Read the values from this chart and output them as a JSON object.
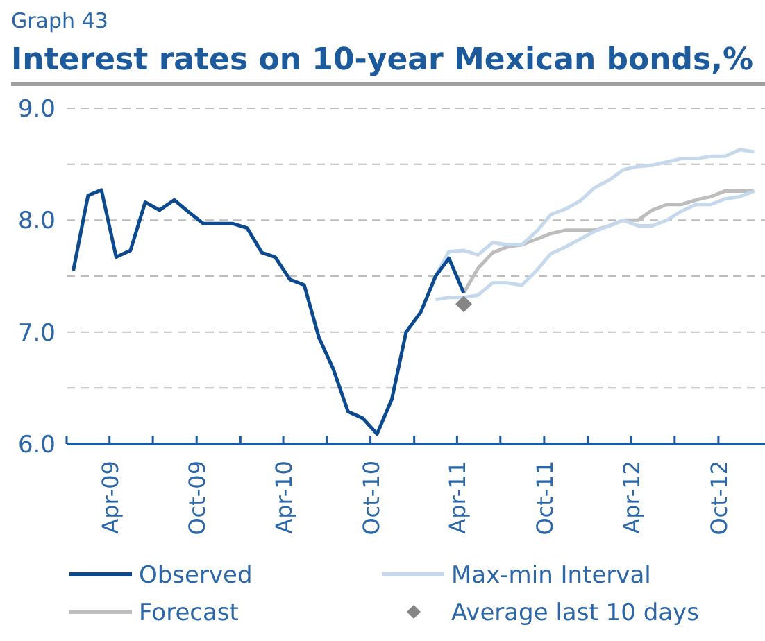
{
  "chart_data": {
    "type": "line",
    "subtitle": "Graph 43",
    "title": "Interest rates on 10-year Mexican bonds,%",
    "xlim": [
      "2009-01-01",
      "2013-01-01"
    ],
    "xticks": [
      {
        "value": "2009-01-01",
        "label": null
      },
      {
        "value": "2009-04-01",
        "label": "Apr-09"
      },
      {
        "value": "2009-07-01",
        "label": null
      },
      {
        "value": "2009-10-01",
        "label": "Oct-09"
      },
      {
        "value": "2010-01-01",
        "label": null
      },
      {
        "value": "2010-04-01",
        "label": "Apr-10"
      },
      {
        "value": "2010-07-01",
        "label": null
      },
      {
        "value": "2010-10-01",
        "label": "Oct-10"
      },
      {
        "value": "2011-01-01",
        "label": null
      },
      {
        "value": "2011-04-01",
        "label": "Apr-11"
      },
      {
        "value": "2011-07-01",
        "label": null
      },
      {
        "value": "2011-10-01",
        "label": "Oct-11"
      },
      {
        "value": "2012-01-01",
        "label": null
      },
      {
        "value": "2012-04-01",
        "label": "Apr-12"
      },
      {
        "value": "2012-07-01",
        "label": null
      },
      {
        "value": "2012-10-01",
        "label": "Oct-12"
      }
    ],
    "ylim": [
      6,
      9
    ],
    "yticks": [
      {
        "value": 6,
        "label": "6.0"
      },
      {
        "value": 6.5,
        "label": null
      },
      {
        "value": 7,
        "label": "7.0"
      },
      {
        "value": 7.5,
        "label": null
      },
      {
        "value": 8,
        "label": "8.0"
      },
      {
        "value": 8.5,
        "label": null
      },
      {
        "value": 9,
        "label": "9.0"
      }
    ],
    "grid": "y",
    "legend": "bottom",
    "line_style": "solid",
    "series": [
      {
        "name": "Observed",
        "color": "#0b4a8f",
        "x": [
          "2009-01-15",
          "2009-02-15",
          "2009-03-15",
          "2009-04-15",
          "2009-05-15",
          "2009-06-15",
          "2009-07-15",
          "2009-08-15",
          "2009-09-15",
          "2009-10-15",
          "2009-11-15",
          "2009-12-15",
          "2010-01-15",
          "2010-02-15",
          "2010-03-15",
          "2010-04-15",
          "2010-05-15",
          "2010-06-15",
          "2010-07-15",
          "2010-08-15",
          "2010-09-15",
          "2010-10-15",
          "2010-11-15",
          "2010-12-15",
          "2011-01-15",
          "2011-02-15",
          "2011-03-15",
          "2011-04-15"
        ],
        "values": [
          7.55,
          8.22,
          8.27,
          7.67,
          7.73,
          8.16,
          8.09,
          8.18,
          8.07,
          7.97,
          7.97,
          7.97,
          7.93,
          7.71,
          7.67,
          7.47,
          7.42,
          6.95,
          6.67,
          6.29,
          6.23,
          6.09,
          6.4,
          7.0,
          7.18,
          7.5,
          7.66,
          7.35
        ]
      },
      {
        "name": "Max-min Interval",
        "color": "#c6d9ec",
        "x": [
          "2011-02-15",
          "2011-03-15",
          "2011-04-15",
          "2011-05-15",
          "2011-06-15",
          "2011-07-15",
          "2011-08-15",
          "2011-09-15",
          "2011-10-15",
          "2011-11-15",
          "2011-12-15",
          "2012-01-15",
          "2012-02-15",
          "2012-03-15",
          "2012-04-15",
          "2012-05-15",
          "2012-06-15",
          "2012-07-15",
          "2012-08-15",
          "2012-09-15",
          "2012-10-15",
          "2012-11-15",
          "2012-12-15"
        ],
        "values": [
          7.5,
          7.72,
          7.73,
          7.69,
          7.8,
          7.78,
          7.78,
          7.9,
          8.05,
          8.1,
          8.17,
          8.29,
          8.36,
          8.45,
          8.48,
          8.49,
          8.52,
          8.55,
          8.55,
          8.57,
          8.57,
          8.63,
          8.61
        ]
      },
      {
        "color": "#c6d9ec",
        "x": [
          "2011-02-15",
          "2011-03-15",
          "2011-04-15",
          "2011-05-15",
          "2011-06-15",
          "2011-07-15",
          "2011-08-15",
          "2011-09-15",
          "2011-10-15",
          "2011-11-15",
          "2011-12-15",
          "2012-01-15",
          "2012-02-15",
          "2012-03-15",
          "2012-04-15",
          "2012-05-15",
          "2012-06-15",
          "2012-07-15",
          "2012-08-15",
          "2012-09-15",
          "2012-10-15",
          "2012-11-15",
          "2012-12-15"
        ],
        "values": [
          7.29,
          7.31,
          7.31,
          7.33,
          7.44,
          7.44,
          7.42,
          7.55,
          7.7,
          7.76,
          7.83,
          7.9,
          7.95,
          8.0,
          7.95,
          7.95,
          8.0,
          8.08,
          8.14,
          8.14,
          8.19,
          8.21,
          8.26
        ]
      },
      {
        "name": "Forecast",
        "color": "#bdbdbd",
        "x": [
          "2011-04-15",
          "2011-05-15",
          "2011-06-15",
          "2011-07-15",
          "2011-08-15",
          "2011-09-15",
          "2011-10-15",
          "2011-11-15",
          "2011-12-15",
          "2012-01-15",
          "2012-02-15",
          "2012-03-15",
          "2012-04-15",
          "2012-05-15",
          "2012-06-15",
          "2012-07-15",
          "2012-08-15",
          "2012-09-15",
          "2012-10-15",
          "2012-11-15",
          "2012-12-15"
        ],
        "values": [
          7.35,
          7.57,
          7.71,
          7.76,
          7.78,
          7.83,
          7.88,
          7.91,
          7.91,
          7.91,
          7.95,
          8.0,
          8.0,
          8.09,
          8.14,
          8.14,
          8.18,
          8.21,
          8.26,
          8.26,
          8.26
        ]
      },
      {
        "name": "Average last 10 days",
        "type": "scatter",
        "marker": "diamond",
        "color": "#858585",
        "x": [
          "2011-04-15"
        ],
        "values": [
          7.25
        ]
      }
    ]
  }
}
